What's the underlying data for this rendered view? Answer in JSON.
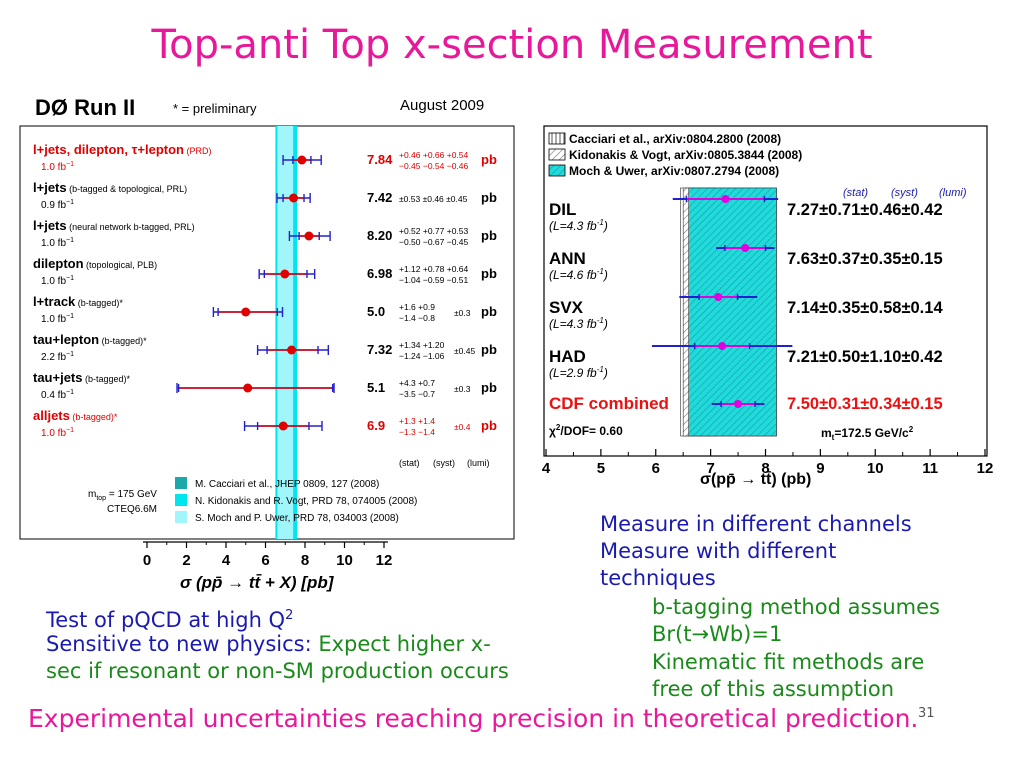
{
  "slide": {
    "title": "Top-anti Top x-section Measurement",
    "page_number": "31",
    "footer": "Experimental uncertainties reaching precision in theoretical prediction.",
    "left_notes": {
      "line1": "Test of pQCD at high Q",
      "line1_sup": "2",
      "line2_blue": "Sensitive to new physics:",
      "line2_green": "Expect higher x-",
      "line3": "sec if resonant or non-SM production occurs"
    },
    "right_notes": {
      "line1": "Measure in different channels",
      "line2": "Measure with different",
      "line3": "techniques",
      "sub1": "b-tagging method assumes",
      "sub2": "Br(t→Wb)=1",
      "sub3": "Kinematic fit methods are",
      "sub4": "free of this assumption"
    }
  },
  "colors": {
    "title": "#e8189a",
    "blue_text": "#1a1ab0",
    "green_text": "#1a8a1a",
    "d0_point": "#e00000",
    "d0_error": "#2020d0",
    "cdf_point": "#e000e0",
    "cdf_error": "#2020d0",
    "band_dark": "#1fb8b8",
    "band_mid": "#00e5ee",
    "band_light": "#a0f6fa"
  },
  "chart_data": [
    {
      "type": "scatter",
      "title": "DØ Run II",
      "subtitle": "* = preliminary",
      "date": "August 2009",
      "xlabel": "σ (pp̄ → tt̄ + X) [pb]",
      "xlim": [
        0,
        12
      ],
      "xticks": [
        "0",
        "2",
        "4",
        "6",
        "8",
        "10",
        "12"
      ],
      "footer_labels": [
        "(stat)",
        "(syst)",
        "(lumi)"
      ],
      "mtop_text": "m",
      "mtop_sub": "top",
      "mtop_value": " = 175 GeV",
      "pdf_text": "CTEQ6.6M",
      "theory_bands": [
        {
          "label": "M. Cacciari et al., JHEP 0809, 127 (2008)",
          "range": [
            6.6,
            7.2
          ],
          "shade": "dark"
        },
        {
          "label": "N. Kidonakis and R. Vogt, PRD 78, 074005 (2008)",
          "range": [
            6.5,
            7.6
          ],
          "shade": "mid"
        },
        {
          "label": "S. Moch and P. Uwer, PRD 78, 034003 (2008)",
          "range": [
            6.6,
            7.4
          ],
          "shade": "light"
        }
      ],
      "measurements": [
        {
          "name": "l+jets, dilepton, τ+lepton",
          "note": "(PRD)",
          "lumi": "1.0 fb",
          "value": 7.84,
          "value_text": "7.84",
          "stat_up": 0.46,
          "stat_dn": 0.45,
          "tot_up": 0.98,
          "tot_dn": 0.95,
          "highlight": true,
          "unc_up": "+0.46 +0.66 +0.54",
          "unc_dn": "−0.45 −0.54 −0.46",
          "unc_single": "",
          "unit": "pb"
        },
        {
          "name": "l+jets",
          "note": "(b-tagged & topological, PRL)",
          "lumi": "0.9 fb",
          "value": 7.42,
          "value_text": "7.42",
          "stat_up": 0.53,
          "stat_dn": 0.53,
          "tot_up": 0.84,
          "tot_dn": 0.84,
          "highlight": false,
          "unc_up": "",
          "unc_dn": "",
          "unc_single": "±0.53 ±0.46 ±0.45",
          "unit": "pb"
        },
        {
          "name": "l+jets",
          "note": "(neural network b-tagged, PRL)",
          "lumi": "1.0 fb",
          "value": 8.2,
          "value_text": "8.20",
          "stat_up": 0.52,
          "stat_dn": 0.5,
          "tot_up": 1.07,
          "tot_dn": 0.99,
          "highlight": false,
          "unc_up": "+0.52 +0.77 +0.53",
          "unc_dn": "−0.50 −0.67 −0.45",
          "unc_single": "",
          "unit": "pb"
        },
        {
          "name": "dilepton",
          "note": "(topological, PLB)",
          "lumi": "1.0 fb",
          "value": 6.98,
          "value_text": "6.98",
          "stat_up": 1.12,
          "stat_dn": 1.04,
          "tot_up": 1.51,
          "tot_dn": 1.3,
          "highlight": false,
          "unc_up": "+1.12 +0.78 +0.64",
          "unc_dn": "−1.04 −0.59 −0.51",
          "unc_single": "",
          "unit": "pb"
        },
        {
          "name": "l+track",
          "note": "(b-tagged)*",
          "lumi": "1.0 fb",
          "value": 5.0,
          "value_text": "5.0",
          "stat_up": 1.6,
          "stat_dn": 1.4,
          "tot_up": 1.86,
          "tot_dn": 1.64,
          "highlight": false,
          "unc_up": "+1.6  +0.9",
          "unc_dn": "−1.4  −0.8",
          "unc_single": "±0.3",
          "unit": "pb"
        },
        {
          "name": "tau+lepton",
          "note": "(b-tagged)*",
          "lumi": "2.2 fb",
          "value": 7.32,
          "value_text": "7.32",
          "stat_up": 1.34,
          "stat_dn": 1.24,
          "tot_up": 1.86,
          "tot_dn": 1.72,
          "highlight": false,
          "unc_up": "+1.34 +1.20",
          "unc_dn": "−1.24 −1.06",
          "unc_single": "±0.45",
          "unit": "pb"
        },
        {
          "name": "tau+jets",
          "note": "(b-tagged)*",
          "lumi": "0.4 fb",
          "value": 5.1,
          "value_text": "5.1",
          "stat_up": 4.3,
          "stat_dn": 3.5,
          "tot_up": 4.37,
          "tot_dn": 3.58,
          "highlight": false,
          "unc_up": "+4.3  +0.7",
          "unc_dn": "−3.5  −0.7",
          "unc_single": "±0.3",
          "unit": "pb"
        },
        {
          "name": "alljets",
          "note": "(b-tagged)*",
          "lumi": "1.0 fb",
          "value": 6.9,
          "value_text": "6.9",
          "stat_up": 1.3,
          "stat_dn": 1.3,
          "tot_up": 1.96,
          "tot_dn": 1.96,
          "highlight": true,
          "unc_up": "+1.3  +1.4",
          "unc_dn": "−1.3  −1.4",
          "unc_single": "±0.4",
          "unit": "pb"
        }
      ]
    },
    {
      "type": "scatter",
      "xlabel": "σ(pp̄ → tt̄) (pb)",
      "xlim": [
        4,
        12
      ],
      "xticks": [
        "4",
        "5",
        "6",
        "7",
        "8",
        "9",
        "10",
        "11",
        "12"
      ],
      "unc_header": [
        "(stat)",
        "(syst)",
        "(lumi)"
      ],
      "chi2_text": "χ",
      "chi2_tail": "/DOF= 0.60",
      "mt_text": "m",
      "mt_tail": "=172.5 GeV/c",
      "legend": [
        {
          "label": "Cacciari et al., arXiv:0804.2800 (2008)",
          "pattern": "vertical-hatch"
        },
        {
          "label": "Kidonakis & Vogt, arXiv:0805.3844 (2008)",
          "pattern": "diagonal-hatch"
        },
        {
          "label": "Moch & Uwer, arXiv:0807.2794 (2008)",
          "pattern": "cyan"
        }
      ],
      "theory_bands": [
        {
          "pattern": "vertical-hatch",
          "range": [
            6.45,
            7.1
          ]
        },
        {
          "pattern": "diagonal-hatch",
          "range": [
            6.5,
            8.2
          ]
        },
        {
          "pattern": "cyan",
          "range": [
            6.6,
            8.2
          ]
        }
      ],
      "measurements": [
        {
          "name": "DIL",
          "lumi": "(L=4.3 fb",
          "value": 7.27,
          "stat": 0.71,
          "total": 0.96,
          "text": "7.27±0.71±0.46±0.42",
          "highlight": false
        },
        {
          "name": "ANN",
          "lumi": "(L=4.6 fb",
          "value": 7.63,
          "stat": 0.37,
          "total": 0.53,
          "text": "7.63±0.37±0.35±0.15",
          "highlight": false
        },
        {
          "name": "SVX",
          "lumi": "(L=4.3 fb",
          "value": 7.14,
          "stat": 0.35,
          "total": 0.71,
          "text": "7.14±0.35±0.58±0.14",
          "highlight": false
        },
        {
          "name": "HAD",
          "lumi": "(L=2.9 fb",
          "value": 7.21,
          "stat": 0.5,
          "total": 1.28,
          "text": "7.21±0.50±1.10±0.42",
          "highlight": false
        },
        {
          "name": "CDF combined",
          "lumi": "",
          "value": 7.5,
          "stat": 0.31,
          "total": 0.48,
          "text": "7.50±0.31±0.34±0.15",
          "highlight": true
        }
      ]
    }
  ]
}
